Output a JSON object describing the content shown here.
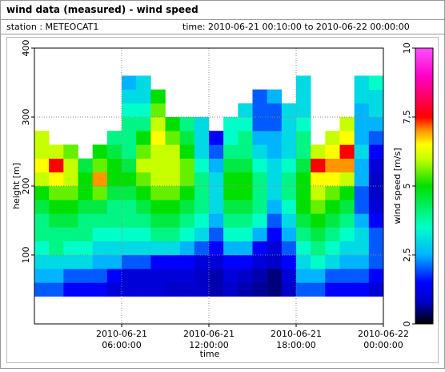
{
  "chart_data": {
    "type": "heatmap",
    "title": "wind data (measured) - wind speed",
    "station": "station : METEOCAT1",
    "period": "time: 2010-06-21 00:10:00 to 2010-06-22 00:00:00",
    "x_label": "time",
    "y_label": "height [m]",
    "colorbar_label": "wind speed [m/s]",
    "xlim": [
      0,
      24
    ],
    "xticks": [
      {
        "value": 6,
        "label": "2010-06-21 06:00:00"
      },
      {
        "value": 12,
        "label": "2010-06-21 12:00:00"
      },
      {
        "value": 18,
        "label": "2010-06-21 18:00:00"
      },
      {
        "value": 24,
        "label": "2010-06-22 00:00:00"
      }
    ],
    "ylim": [
      0,
      400
    ],
    "yticks": [
      100,
      200,
      300,
      400
    ],
    "grid": true,
    "clim": [
      0,
      10
    ],
    "cticks": [
      0,
      {
        "value": 2.5,
        "label": "2,5"
      },
      5,
      {
        "value": 7.5,
        "label": "7,5"
      },
      10
    ],
    "colormap": [
      [
        0,
        "#000000"
      ],
      [
        0.8,
        "#0000c8"
      ],
      [
        1.5,
        "#0000ff"
      ],
      [
        2.5,
        "#00b4ff"
      ],
      [
        3.5,
        "#00ffc8"
      ],
      [
        5,
        "#00e000"
      ],
      [
        6,
        "#c8ff00"
      ],
      [
        6.5,
        "#ffff00"
      ],
      [
        7,
        "#ff9600"
      ],
      [
        7.5,
        "#ff0000"
      ],
      [
        9,
        "#ff00c8"
      ],
      [
        10,
        "#ff50ff"
      ]
    ],
    "x": [
      0.5,
      1.5,
      2.5,
      3.5,
      4.5,
      5.5,
      6.5,
      7.5,
      8.5,
      9.5,
      10.5,
      11.5,
      12.5,
      13.5,
      14.5,
      15.5,
      16.5,
      17.5,
      18.5,
      19.5,
      20.5,
      21.5,
      22.5,
      23.5
    ],
    "heights": [
      50,
      70,
      90,
      110,
      130,
      150,
      170,
      190,
      210,
      230,
      250,
      270,
      290,
      310,
      330,
      350
    ],
    "values": [
      [
        2,
        2.5,
        3,
        3.5,
        4,
        4,
        4.5,
        5,
        6,
        6.5,
        6,
        6,
        null,
        null,
        null,
        null
      ],
      [
        2,
        2.5,
        3,
        4,
        4,
        4.5,
        5,
        5.5,
        6.5,
        7.5,
        6,
        null,
        null,
        null,
        null,
        null
      ],
      [
        1.5,
        2,
        3,
        3.5,
        4,
        4.5,
        5,
        5.5,
        6,
        6,
        5.5,
        null,
        null,
        null,
        null,
        null
      ],
      [
        1.5,
        2,
        3,
        3.5,
        4,
        4,
        4.5,
        5,
        5,
        4.5,
        null,
        null,
        null,
        null,
        null,
        null
      ],
      [
        1.5,
        2,
        2.5,
        3,
        3.5,
        4,
        4.5,
        5.5,
        7,
        5.5,
        5,
        null,
        null,
        null,
        null,
        null
      ],
      [
        1,
        1.5,
        2.5,
        3,
        3.5,
        4,
        4,
        4.5,
        5,
        5,
        4.5,
        4,
        null,
        null,
        null,
        null
      ],
      [
        1,
        1,
        2,
        3,
        3.5,
        4,
        4,
        4.5,
        5,
        4.5,
        4,
        4,
        4,
        3.5,
        3,
        2.5
      ],
      [
        1,
        1,
        2,
        3,
        3.5,
        4,
        4.5,
        5,
        5.5,
        6,
        5.5,
        5,
        4,
        3.5,
        3,
        3
      ],
      [
        1,
        1,
        1.5,
        3,
        4,
        4.5,
        5,
        5.5,
        6,
        6,
        6,
        6.5,
        6,
        5.5,
        5,
        null
      ],
      [
        0.8,
        1,
        1.5,
        3,
        4,
        4.5,
        5,
        5.5,
        6,
        6,
        6,
        5.5,
        5,
        null,
        null,
        null
      ],
      [
        0.8,
        1,
        1.5,
        2.5,
        3.5,
        4,
        4.5,
        5,
        5.5,
        5.5,
        5,
        4.5,
        4,
        null,
        null,
        null
      ],
      [
        0.8,
        0.8,
        1,
        2,
        3,
        3.5,
        4,
        4,
        4,
        3.5,
        3,
        3,
        3,
        null,
        null,
        null
      ],
      [
        0.7,
        0.7,
        1,
        1.5,
        2,
        2.5,
        3,
        3,
        3,
        2.5,
        2,
        1.5,
        null,
        null,
        null,
        null
      ],
      [
        0.8,
        1,
        1.5,
        2.5,
        3.5,
        4,
        4.5,
        5,
        5,
        4.5,
        4,
        3.5,
        3.5,
        null,
        null,
        null
      ],
      [
        0.7,
        0.8,
        1.5,
        2.5,
        3.5,
        4,
        4.5,
        5,
        5,
        4.5,
        4,
        4,
        3.5,
        3,
        null,
        null
      ],
      [
        0.6,
        0.7,
        1,
        1.5,
        2.5,
        3.5,
        4,
        4,
        4,
        3.5,
        3,
        2.5,
        2,
        2,
        2,
        null
      ],
      [
        0.5,
        0.5,
        0.8,
        1,
        1.5,
        2,
        2.5,
        3,
        3,
        3,
        2.5,
        2.5,
        2,
        2,
        2.5,
        null
      ],
      [
        0.8,
        1,
        1.5,
        2,
        2.5,
        3,
        3.5,
        4,
        4,
        3.5,
        3,
        3,
        3,
        3,
        null,
        null
      ],
      [
        2,
        2.5,
        3,
        3.5,
        4,
        4.5,
        5,
        5,
        5,
        4.5,
        4,
        4,
        3.5,
        3,
        3,
        3
      ],
      [
        2,
        2.5,
        3.5,
        4,
        4.5,
        5,
        5.5,
        6,
        6.5,
        7.5,
        6,
        null,
        null,
        null,
        null,
        null
      ],
      [
        1.5,
        2,
        3,
        3.5,
        4,
        4.5,
        5,
        5.5,
        6.5,
        7,
        6.5,
        6,
        null,
        null,
        null,
        null
      ],
      [
        1.5,
        2,
        2.5,
        3,
        3.5,
        4,
        4.5,
        5,
        6,
        7,
        7.5,
        6.5,
        6,
        null,
        null,
        null
      ],
      [
        1.5,
        2,
        2.5,
        3,
        3,
        2.5,
        2,
        2,
        2.5,
        2.5,
        3,
        2.5,
        2.5,
        2.5,
        3,
        3
      ],
      [
        1,
        1.5,
        2,
        2,
        2,
        1.5,
        1,
        0.8,
        0.8,
        1,
        1.5,
        2,
        2.5,
        3,
        3,
        3.5
      ]
    ]
  }
}
